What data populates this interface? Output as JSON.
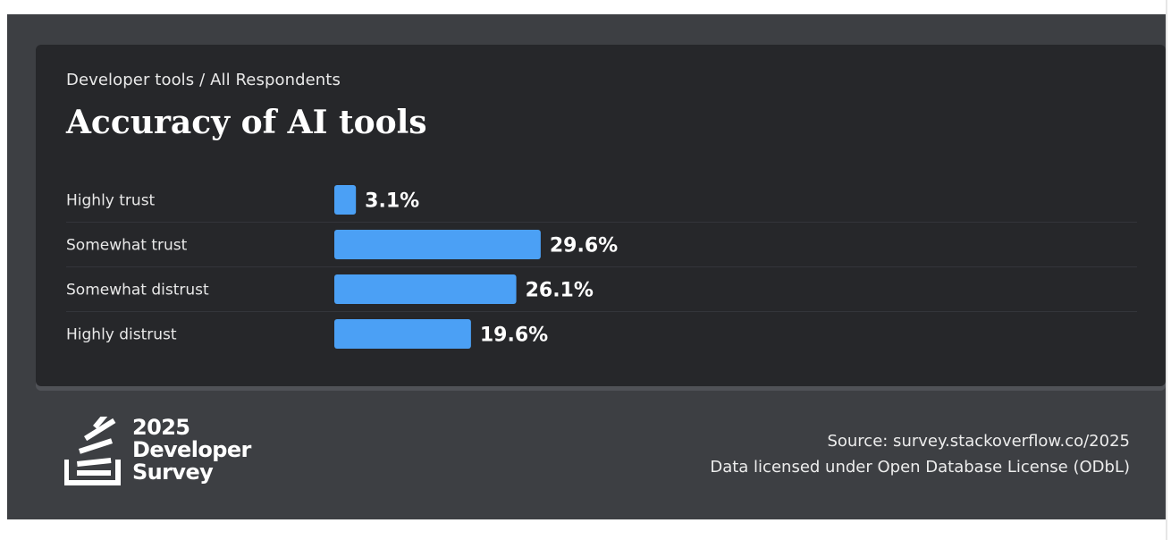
{
  "header": {
    "breadcrumb": "Developer tools / All Respondents",
    "title": "Accuracy of AI tools"
  },
  "chart_data": {
    "type": "bar",
    "orientation": "horizontal",
    "categories": [
      "Highly trust",
      "Somewhat trust",
      "Somewhat distrust",
      "Highly distrust"
    ],
    "values": [
      3.1,
      29.6,
      26.1,
      19.6
    ],
    "value_labels": [
      "3.1%",
      "29.6%",
      "26.1%",
      "19.6%"
    ],
    "unit": "%",
    "xlim": [
      0,
      100
    ],
    "grid": false,
    "bar_color": "#4ba0f5",
    "title": "Accuracy of AI tools"
  },
  "footer": {
    "logo_lines": [
      "2025",
      "Developer",
      "Survey"
    ],
    "source": "Source: survey.stackoverflow.co/2025",
    "license": "Data licensed under Open Database License (ODbL)"
  },
  "colors": {
    "background": "#3d3f43",
    "card": "#26272a",
    "bar": "#4ba0f5",
    "text": "#ffffff"
  }
}
